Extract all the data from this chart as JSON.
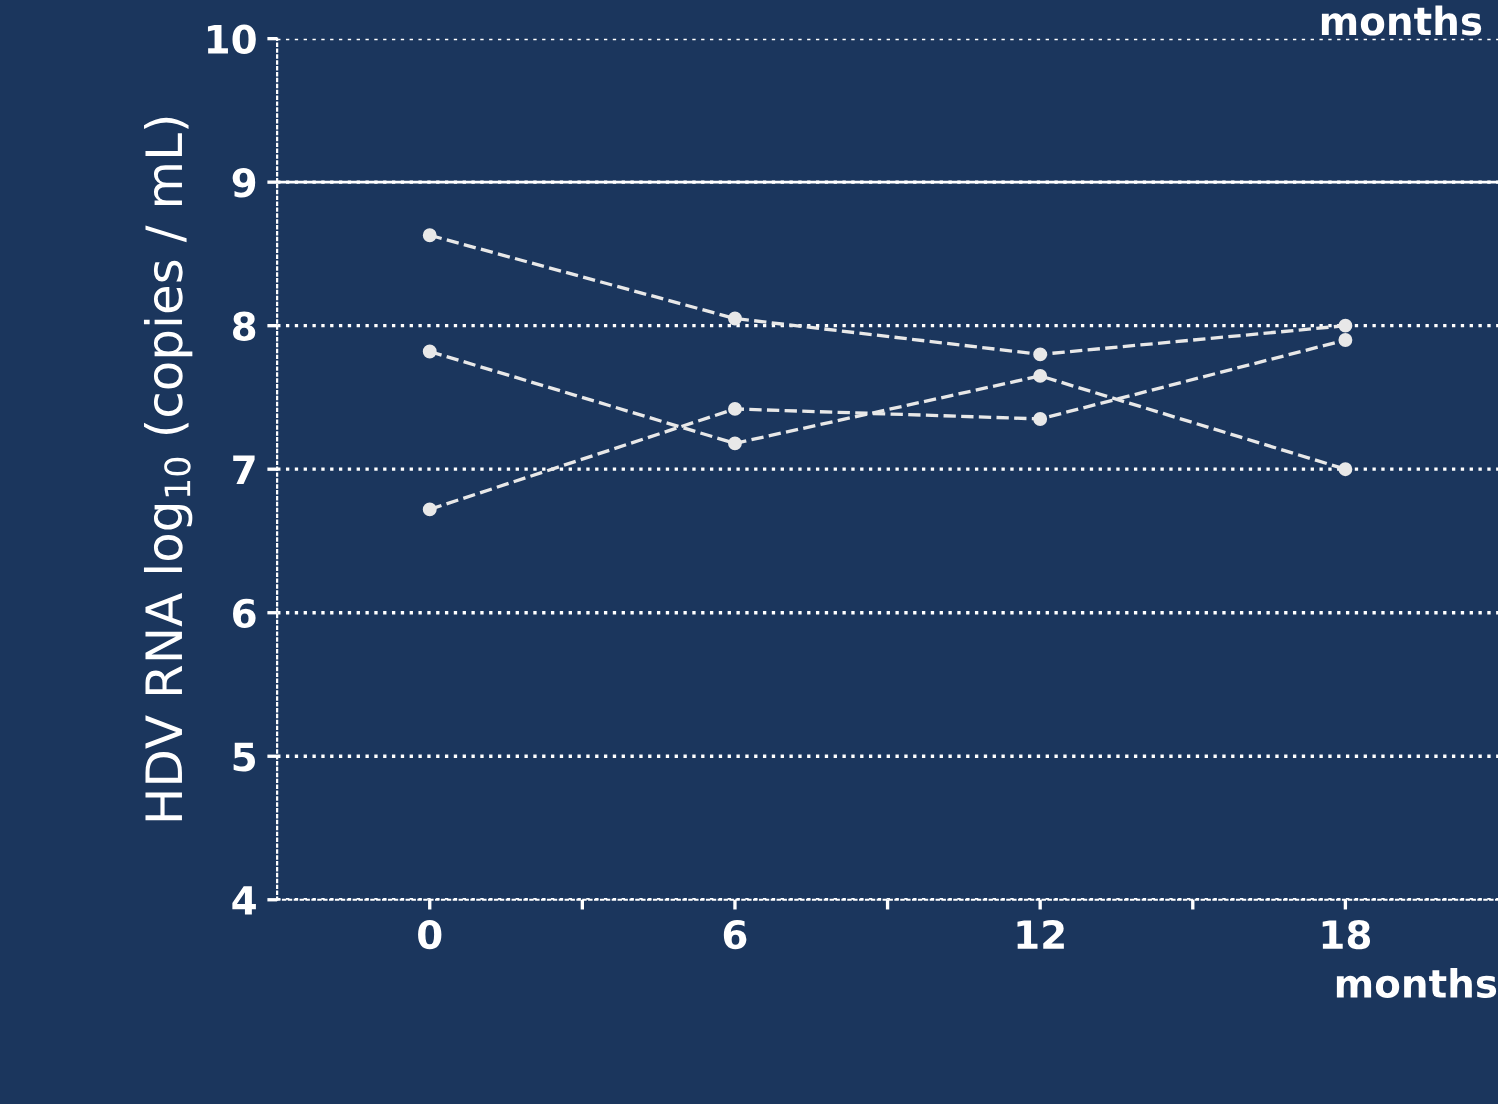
{
  "chart_data": {
    "type": "line",
    "xlabel": "months",
    "x2label": "months",
    "ylabel": "HDV RNA log$_{10}$ (copies / mL)",
    "x": [
      0,
      6,
      12,
      18
    ],
    "series": [
      {
        "color": "#e8e8e8",
        "values": [
          8.63,
          8.05,
          7.8,
          8.0
        ]
      },
      {
        "color": "#e8e8e8",
        "values": [
          7.82,
          7.18,
          7.65,
          7.0
        ]
      },
      {
        "color": "#e8e8e8",
        "values": [
          6.72,
          7.42,
          7.35,
          7.9
        ]
      }
    ],
    "xlim": [
      -3,
      21
    ],
    "xticks": [
      0,
      {
        "value": 3,
        "label": null
      },
      6,
      {
        "value": 9,
        "label": null
      },
      12,
      {
        "value": 15,
        "label": null
      },
      18
    ],
    "ylim": [
      4,
      10
    ],
    "yticks": [
      4,
      5,
      6,
      7,
      8,
      9,
      10
    ],
    "ref_lines": [
      {
        "axis": "y",
        "value": 9,
        "color": "#ffffff",
        "line_style": "solid"
      }
    ],
    "grid": "y",
    "marker": "circle",
    "line_style": "dashed",
    "legend": false
  }
}
